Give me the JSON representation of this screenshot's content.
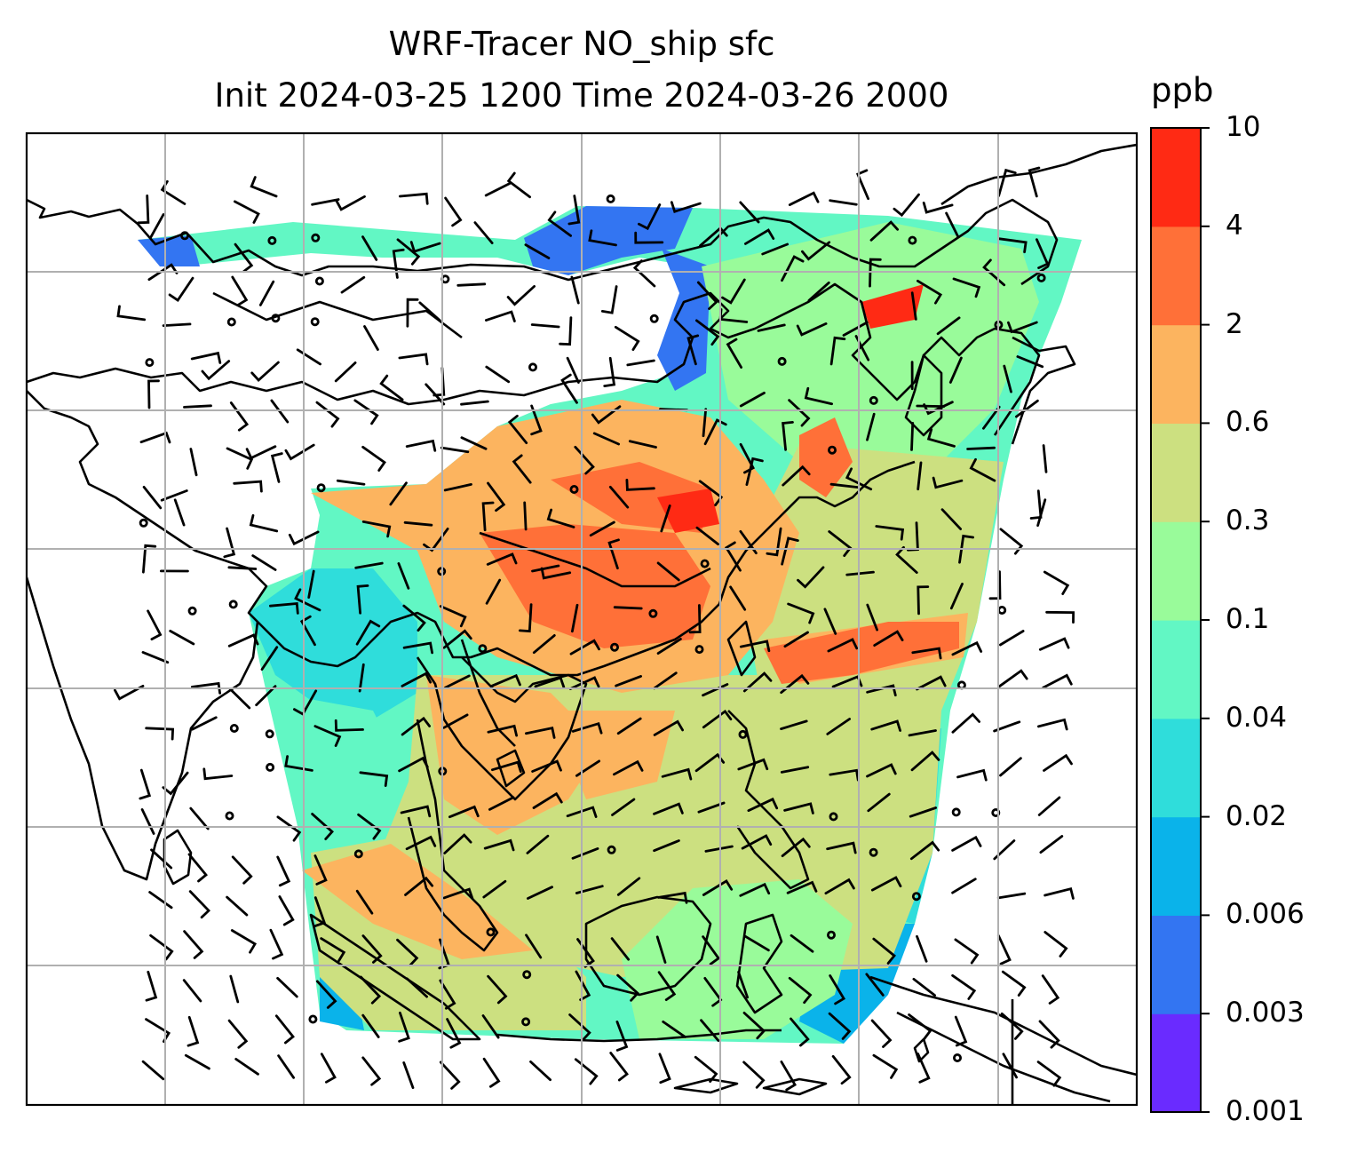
{
  "title": {
    "line1": "WRF-Tracer NO_ship sfc",
    "line2": "Init 2024-03-25 1200 Time 2024-03-26 2000"
  },
  "colorbar": {
    "unit": "ppb",
    "ticks": [
      "0.001",
      "0.003",
      "0.006",
      "0.02",
      "0.04",
      "0.1",
      "0.3",
      "0.6",
      "2",
      "4",
      "10"
    ],
    "colors": [
      "#6a2bff",
      "#3375f2",
      "#0ab3ea",
      "#2fdddb",
      "#62f7c4",
      "#99fb9a",
      "#cce080",
      "#fcb45f",
      "#ff7038",
      "#ff2a14"
    ]
  },
  "map": {
    "gridlines": true,
    "gridline_color": "#b0b0b0",
    "coastline_color": "#000000",
    "land_background": "#ffffff",
    "domain_shape": "tilted quadrilateral (Lambert projection), partially blank over the Tibetan plateau",
    "wind_barbs": "black barbs; circles denote calm winds"
  }
}
